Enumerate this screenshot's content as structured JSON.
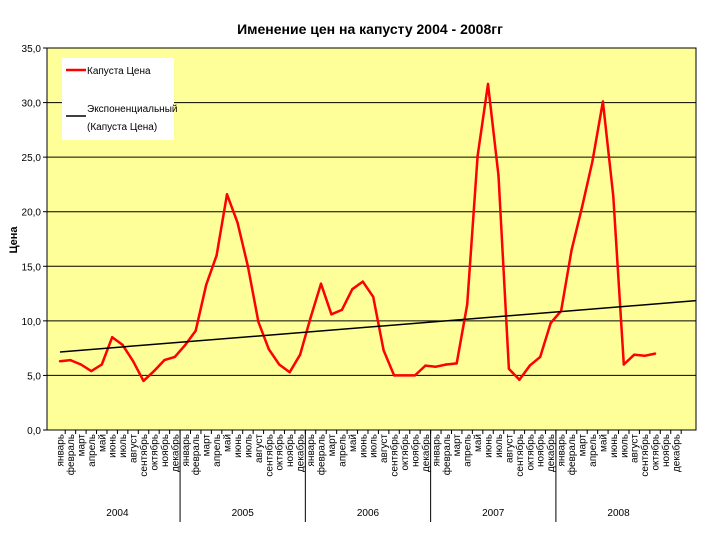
{
  "chart_data": {
    "type": "line",
    "title": "Именение цен на капусту 2004 - 2008гг",
    "ylabel": "Цена",
    "ylim": [
      0,
      35
    ],
    "yticks": [
      0,
      5,
      10,
      15,
      20,
      25,
      30,
      35
    ],
    "ytick_labels": [
      "0,0",
      "5,0",
      "10,0",
      "15,0",
      "20,0",
      "25,0",
      "30,0",
      "35,0"
    ],
    "plot_background": "#ffff99",
    "month_labels": [
      "январь",
      "февраль",
      "март",
      "апрель",
      "май",
      "июнь",
      "июль",
      "август",
      "сентябрь",
      "октябрь",
      "ноябрь",
      "декабрь",
      "январь",
      "февраль",
      "март",
      "апрель",
      "май",
      "июнь",
      "июль",
      "август",
      "сентябрь",
      "октябрь",
      "ноябрь",
      "декабрь",
      "январь",
      "февраль",
      "март",
      "апрель",
      "май",
      "июнь",
      "июль",
      "август",
      "сентябрь",
      "октябрь",
      "ноябрь",
      "декабрь",
      "январь",
      "февраль",
      "март",
      "апрель",
      "май",
      "июнь",
      "июль",
      "август",
      "сентябрь",
      "октябрь",
      "ноябрь",
      "декабрь",
      "январь",
      "февраль",
      "март",
      "апрель",
      "май",
      "июнь",
      "июль",
      "август",
      "сентябрь",
      "октябрь",
      "ноябрь",
      "декабрь"
    ],
    "years": [
      "2004",
      "2005",
      "2006",
      "2007",
      "2008"
    ],
    "series": [
      {
        "name": "Капуста Цена",
        "color": "#ff0000",
        "values": [
          6.3,
          6.4,
          6.0,
          5.4,
          6.0,
          8.5,
          7.8,
          6.3,
          4.5,
          5.4,
          6.4,
          6.7,
          7.8,
          9.1,
          13.3,
          16.0,
          21.6,
          19.0,
          15.0,
          9.9,
          7.4,
          6.0,
          5.3,
          6.9,
          10.3,
          13.4,
          10.6,
          11.0,
          12.9,
          13.6,
          12.2,
          7.3,
          5.0,
          5.0,
          5.0,
          5.9,
          5.8,
          6.0,
          6.1,
          11.5,
          25.1,
          31.7,
          23.3,
          5.6,
          4.6,
          5.9,
          6.7,
          9.8,
          10.9,
          16.5,
          20.4,
          24.6,
          30.1,
          21.4,
          6.0,
          6.9,
          6.8,
          7.0,
          null,
          null
        ]
      },
      {
        "name": "Экспоненциальный (Капуста Цена)",
        "color": "#000000",
        "values": [
          7.15,
          11.85
        ]
      }
    ],
    "legend_position": "top-left"
  }
}
